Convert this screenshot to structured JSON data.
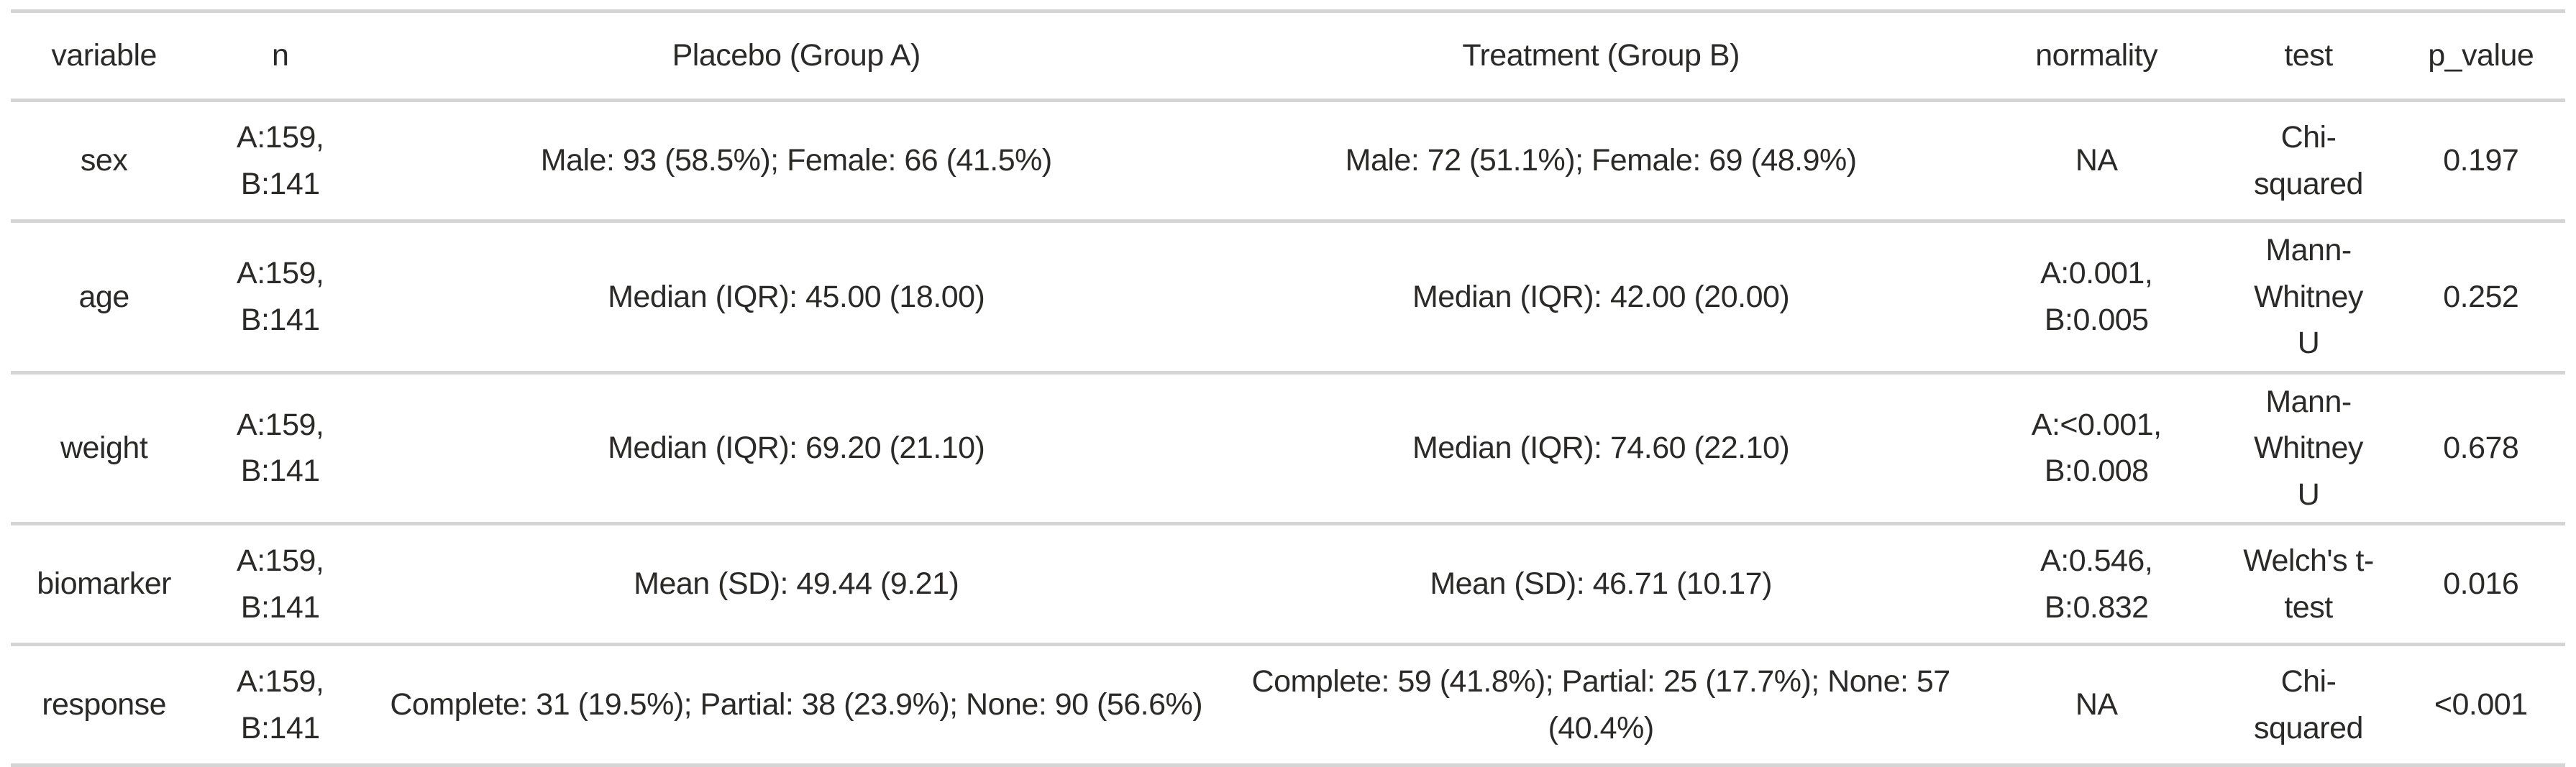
{
  "chart_data": {
    "type": "table",
    "title": "",
    "columns": [
      "variable",
      "n",
      "Placebo (Group A)",
      "Treatment (Group B)",
      "normality",
      "test",
      "p_value"
    ],
    "rows": [
      [
        "sex",
        "A:159,\nB:141",
        "Male: 93 (58.5%); Female: 66 (41.5%)",
        "Male: 72 (51.1%); Female: 69 (48.9%)",
        "NA",
        "Chi-squared",
        "0.197"
      ],
      [
        "age",
        "A:159,\nB:141",
        "Median (IQR): 45.00 (18.00)",
        "Median (IQR): 42.00 (20.00)",
        "A:0.001,\nB:0.005",
        "Mann-Whitney\nU",
        "0.252"
      ],
      [
        "weight",
        "A:159,\nB:141",
        "Median (IQR): 69.20 (21.10)",
        "Median (IQR): 74.60 (22.10)",
        "A:<0.001,\nB:0.008",
        "Mann-Whitney\nU",
        "0.678"
      ],
      [
        "biomarker",
        "A:159,\nB:141",
        "Mean (SD): 49.44 (9.21)",
        "Mean (SD): 46.71 (10.17)",
        "A:0.546,\nB:0.832",
        "Welch's t-test",
        "0.016"
      ],
      [
        "response",
        "A:159,\nB:141",
        "Complete: 31 (19.5%); Partial: 38 (23.9%); None: 90 (56.6%)",
        "Complete: 59 (41.8%); Partial: 25 (17.7%); None: 57 (40.4%)",
        "NA",
        "Chi-squared",
        "<0.001"
      ]
    ]
  },
  "style": {
    "border_color": "#d5d5d5",
    "text_color": "#2b2a29",
    "background": "#ffffff"
  }
}
